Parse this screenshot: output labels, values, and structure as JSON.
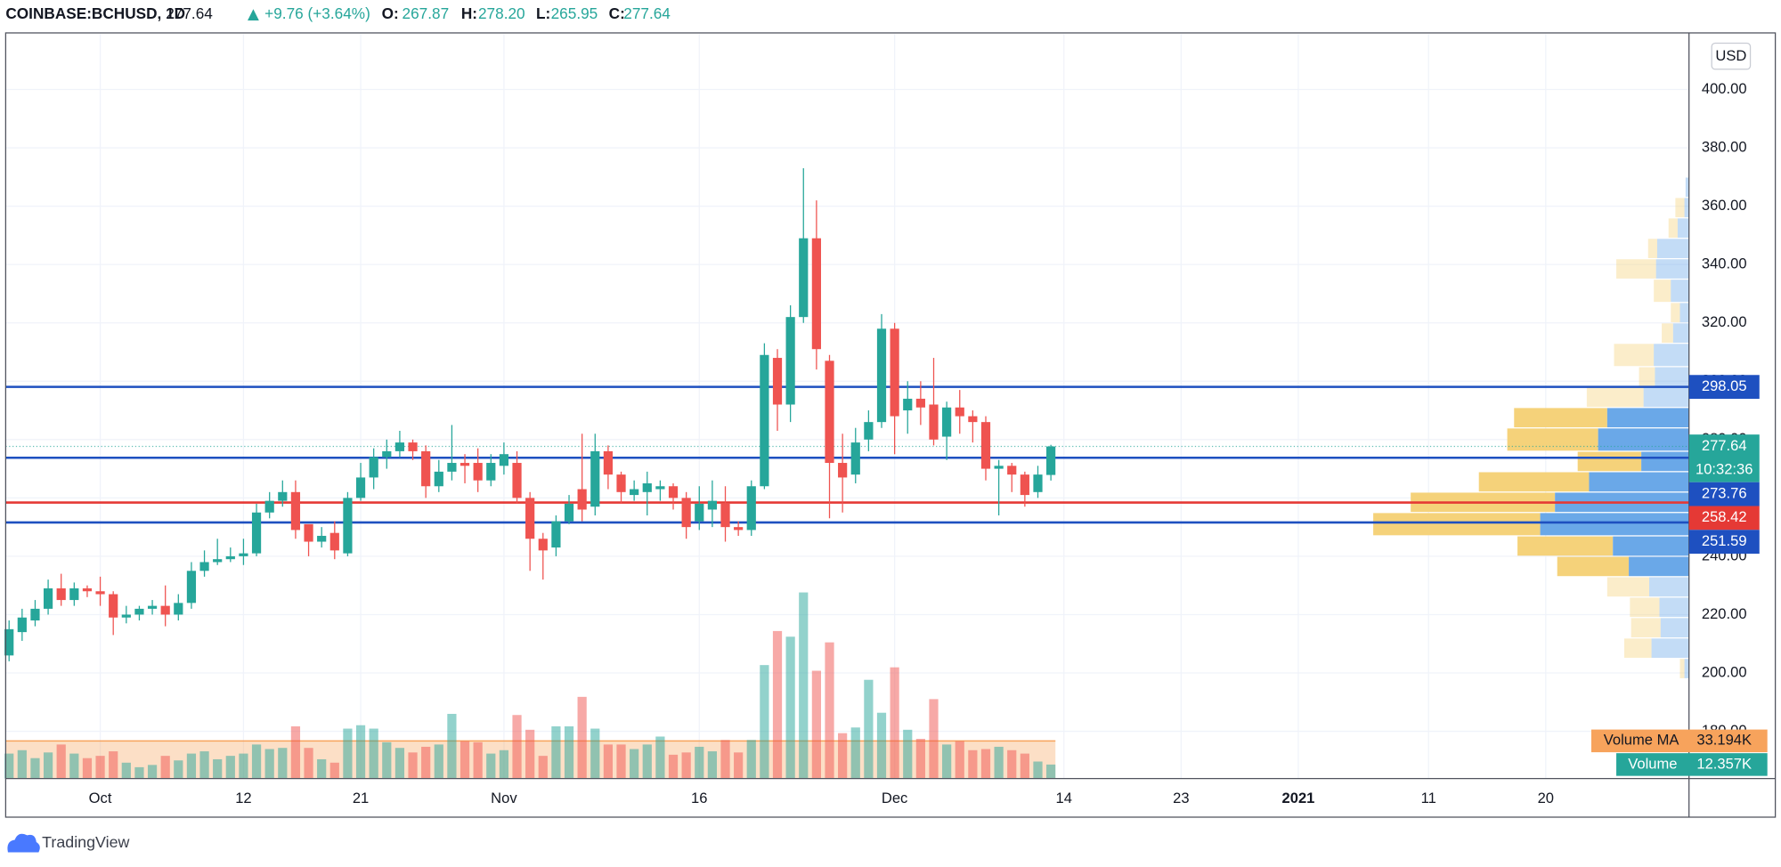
{
  "chart_data": {
    "type": "candlestick",
    "title": "COINBASE:BCHUSD, 1D",
    "last": "277.64",
    "change": "+9.76 (+3.64%)",
    "ohlc": [
      {
        "label": "O:",
        "value": "267.87"
      },
      {
        "label": "H:",
        "value": "278.20"
      },
      {
        "label": "L:",
        "value": "265.95"
      },
      {
        "label": "C:",
        "value": "277.64"
      }
    ],
    "currency": "USD",
    "countdown": "10:32:36",
    "logo": "TradingView",
    "up_color": "#26a69a",
    "down_color": "#ef5350",
    "grid": true,
    "categories": [
      null,
      null,
      null,
      null,
      null,
      null,
      null,
      "Oct",
      null,
      null,
      null,
      null,
      null,
      null,
      null,
      null,
      null,
      null,
      "12",
      null,
      null,
      null,
      null,
      null,
      null,
      null,
      null,
      "21",
      null,
      null,
      null,
      null,
      null,
      null,
      null,
      null,
      null,
      null,
      "Nov",
      null,
      null,
      null,
      null,
      null,
      null,
      null,
      null,
      null,
      null,
      null,
      null,
      null,
      null,
      "16",
      null,
      null,
      null,
      null,
      null,
      null,
      null,
      null,
      null,
      null,
      null,
      null,
      null,
      null,
      "Dec",
      null,
      null,
      null,
      null,
      null,
      null,
      null,
      null,
      null,
      null,
      null,
      null,
      "14",
      null,
      null,
      null,
      null,
      null,
      null,
      null,
      null,
      "23",
      null,
      null,
      null,
      null,
      null,
      null,
      null,
      null,
      "2021",
      null,
      null,
      null,
      null,
      null,
      null,
      null,
      null,
      null,
      "11",
      null,
      null,
      null,
      null,
      null,
      null,
      null,
      null,
      "20",
      null,
      null,
      null,
      null,
      null,
      null,
      null,
      null,
      null,
      null,
      null
    ],
    "open": [
      206,
      214,
      218,
      222,
      229,
      225,
      229,
      228,
      227,
      219,
      220,
      222,
      223,
      220,
      224,
      235,
      238,
      239,
      240,
      241,
      255,
      259,
      262,
      251,
      245,
      248,
      241,
      260,
      267,
      274,
      276,
      279,
      276,
      264,
      269,
      272,
      272,
      266,
      271,
      272,
      260,
      246,
      243,
      252,
      263,
      257,
      276,
      268,
      261,
      262,
      263,
      264,
      260,
      252,
      256,
      258,
      250,
      249,
      264,
      308,
      292,
      322,
      349,
      307,
      272,
      268,
      280,
      286,
      318,
      290,
      294,
      292,
      281,
      291,
      288,
      286,
      270,
      271,
      268,
      262,
      267.87,
      null,
      null,
      null,
      null,
      null,
      null,
      null,
      null,
      null,
      null,
      null,
      null,
      null,
      null,
      null,
      null,
      null,
      null,
      null,
      null,
      null,
      null,
      null,
      null,
      null,
      null,
      null,
      null,
      null,
      null,
      null,
      null,
      null,
      null,
      null,
      null,
      null,
      null,
      null,
      null,
      null,
      null,
      null,
      null,
      null,
      null,
      null,
      null,
      null
    ],
    "high": [
      218,
      222,
      225,
      232,
      234,
      231,
      230,
      233,
      228,
      223,
      223,
      225,
      230,
      227,
      238,
      242,
      246,
      243,
      246,
      258,
      262,
      266,
      266,
      250,
      250,
      252,
      262,
      272,
      277,
      280,
      283,
      280,
      278,
      273,
      285,
      275,
      277,
      275,
      279,
      276,
      262,
      248,
      254,
      261,
      282,
      282,
      278,
      269,
      266,
      269,
      266,
      265,
      262,
      264,
      266,
      264,
      252,
      266,
      313,
      311,
      326,
      373,
      362,
      309,
      282,
      284,
      290,
      323,
      320,
      300,
      300,
      308,
      293,
      297,
      290,
      288,
      273,
      272,
      269,
      271,
      278.2,
      null,
      null,
      null,
      null,
      null,
      null,
      null,
      null,
      null,
      null,
      null,
      null,
      null,
      null,
      null,
      null,
      null,
      null,
      null,
      null,
      null,
      null,
      null,
      null,
      null,
      null,
      null,
      null,
      null,
      null,
      null,
      null,
      null,
      null,
      null,
      null,
      null,
      null,
      null,
      null,
      null,
      null,
      null,
      null,
      null,
      null,
      null,
      null,
      null
    ],
    "low": [
      204,
      211,
      216,
      220,
      223,
      223,
      226,
      223,
      213,
      217,
      218,
      220,
      216,
      218,
      222,
      233,
      237,
      238,
      237,
      240,
      253,
      257,
      246,
      240,
      243,
      239,
      240,
      259,
      263,
      270,
      274,
      273,
      260,
      262,
      266,
      265,
      262,
      264,
      268,
      258,
      235,
      232,
      240,
      251,
      252,
      254,
      263,
      258,
      259,
      254,
      259,
      256,
      246,
      249,
      250,
      245,
      247,
      247,
      263,
      283,
      286,
      320,
      304,
      253,
      255,
      265,
      276,
      284,
      275,
      282,
      285,
      278,
      273,
      282,
      279,
      266,
      254,
      262,
      257,
      260,
      265.95,
      null,
      null,
      null,
      null,
      null,
      null,
      null,
      null,
      null,
      null,
      null,
      null,
      null,
      null,
      null,
      null,
      null,
      null,
      null,
      null,
      null,
      null,
      null,
      null,
      null,
      null,
      null,
      null,
      null,
      null,
      null,
      null,
      null,
      null,
      null,
      null,
      null,
      null,
      null,
      null,
      null,
      null,
      null,
      null,
      null,
      null,
      null,
      null,
      null
    ],
    "close": [
      215,
      219,
      222,
      229,
      225,
      229,
      228,
      227,
      219,
      220,
      222,
      223,
      220,
      224,
      235,
      238,
      239,
      240,
      241,
      255,
      259,
      262,
      249,
      245,
      247,
      242,
      260,
      267,
      274,
      276,
      279,
      276,
      264,
      269,
      272,
      271,
      266,
      272,
      275,
      260,
      246,
      242,
      252,
      258,
      256,
      276,
      268,
      262,
      263,
      265,
      264,
      260,
      250,
      258,
      259,
      250,
      249,
      264,
      309,
      292,
      322,
      349,
      311,
      272,
      267,
      279,
      286,
      318,
      288,
      294,
      291,
      280,
      291,
      288,
      286,
      270,
      271,
      268,
      261,
      268,
      277.64,
      null,
      null,
      null,
      null,
      null,
      null,
      null,
      null,
      null,
      null,
      null,
      null,
      null,
      null,
      null,
      null,
      null,
      null,
      null,
      null,
      null,
      null,
      null,
      null,
      null,
      null,
      null,
      null,
      null,
      null,
      null,
      null,
      null,
      null,
      null,
      null,
      null,
      null,
      null,
      null,
      null,
      null,
      null,
      null,
      null,
      null,
      null,
      null,
      null
    ],
    "volume": {
      "name": "Volume",
      "last_label": "12.357K",
      "values": [
        22,
        25,
        18,
        23,
        30,
        22,
        18,
        20,
        24,
        14,
        10,
        12,
        20,
        16,
        22,
        24,
        17,
        20,
        22,
        30,
        26,
        27,
        46,
        27,
        17,
        14,
        44,
        47,
        44,
        32,
        27,
        23,
        28,
        30,
        57,
        33,
        32,
        22,
        25,
        56,
        43,
        20,
        46,
        46,
        72,
        44,
        30,
        30,
        26,
        30,
        37,
        21,
        23,
        28,
        24,
        34,
        23,
        34,
        100,
        130,
        125,
        164,
        95,
        120,
        40,
        45,
        87,
        58,
        98,
        43,
        35,
        70,
        30,
        33,
        25,
        26,
        28,
        25,
        22,
        15,
        12.357,
        null,
        null,
        null,
        null,
        null,
        null,
        null,
        null,
        null,
        null,
        null,
        null,
        null,
        null,
        null,
        null,
        null,
        null,
        null,
        null,
        null,
        null,
        null,
        null,
        null,
        null,
        null,
        null,
        null,
        null,
        null,
        null,
        null,
        null,
        null,
        null,
        null,
        null,
        null,
        null,
        null,
        null,
        null,
        null,
        null,
        null,
        null,
        null,
        null
      ]
    },
    "volume_ma": {
      "name": "Volume MA",
      "value": 33.194,
      "label": "33.194K",
      "color": "#f7a35c"
    },
    "ylim": [
      163.8,
      419
    ],
    "yticks": [
      {
        "value": 180,
        "label": "180.00"
      },
      {
        "value": 200,
        "label": "200.00"
      },
      {
        "value": 220,
        "label": "220.00"
      },
      {
        "value": 240,
        "label": "240.00"
      },
      {
        "value": 260,
        "label": "260.00"
      },
      {
        "value": 280,
        "label": "280.00"
      },
      {
        "value": 300,
        "label": "300.00"
      },
      {
        "value": 320,
        "label": "320.00"
      },
      {
        "value": 340,
        "label": "340.00"
      },
      {
        "value": 360,
        "label": "360.00"
      },
      {
        "value": 380,
        "label": "380.00"
      },
      {
        "value": 400,
        "label": "400.00"
      }
    ],
    "hlines": [
      {
        "value": 298.05,
        "color": "#1e50c0"
      },
      {
        "value": 273.76,
        "color": "#1e50c0"
      },
      {
        "value": 258.42,
        "color": "#e53935"
      },
      {
        "value": 251.59,
        "color": "#1e50c0"
      }
    ],
    "volume_profile": {
      "bins": [
        198,
        205,
        212,
        219,
        226,
        233,
        240,
        247,
        255,
        262,
        269,
        276,
        284,
        291,
        298,
        305,
        313,
        320,
        327,
        335,
        342,
        349,
        356,
        363,
        370
      ],
      "up": [
        4,
        33,
        25,
        26,
        35,
        53,
        67,
        131,
        118,
        88,
        42,
        80,
        72,
        40,
        30,
        31,
        14,
        8,
        16,
        29,
        28,
        10,
        4,
        3
      ],
      "down": [
        4,
        24,
        26,
        26,
        37,
        63,
        84,
        147,
        127,
        97,
        56,
        80,
        82,
        50,
        14,
        35,
        10,
        8,
        15,
        35,
        8,
        8,
        8,
        0
      ],
      "up_color": "#6aa8e8",
      "down_color": "#f5d27a",
      "value_area": [
        233,
        291
      ]
    }
  }
}
